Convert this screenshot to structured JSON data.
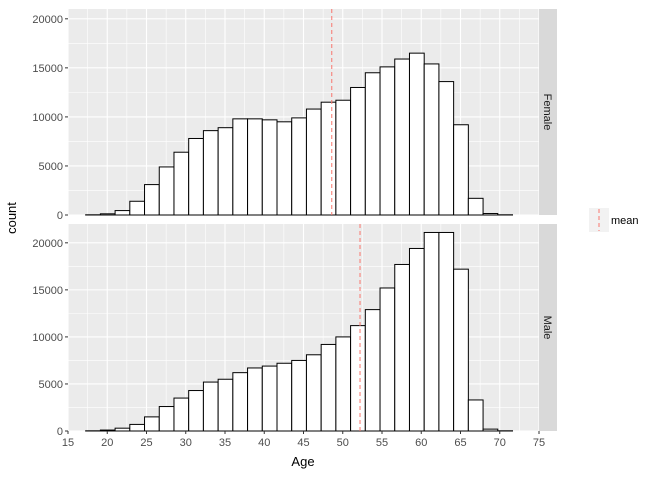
{
  "chart_data": {
    "type": "histogram",
    "xlabel": "Age",
    "ylabel": "count",
    "xlim": [
      15,
      75
    ],
    "x_ticks": [
      15,
      20,
      25,
      30,
      35,
      40,
      45,
      50,
      55,
      60,
      65,
      70,
      75
    ],
    "bin_width": 1.875,
    "bin_start": 17.25,
    "grid": true,
    "legend": {
      "position": "right",
      "entries": [
        {
          "label": "mean",
          "color": "#F8766D",
          "linetype": "dashed"
        }
      ]
    },
    "panels": [
      {
        "facet": "Female",
        "ylim": [
          0,
          21000
        ],
        "y_ticks": [
          0,
          5000,
          10000,
          15000,
          20000
        ],
        "mean": 48.6,
        "counts": [
          20,
          120,
          450,
          1400,
          3100,
          4900,
          6400,
          7800,
          8600,
          8900,
          9800,
          9800,
          9700,
          9500,
          9900,
          10800,
          11500,
          11700,
          13000,
          14500,
          15100,
          15900,
          16500,
          15400,
          13600,
          9200,
          1700,
          150,
          20
        ]
      },
      {
        "facet": "Male",
        "ylim": [
          0,
          22000
        ],
        "y_ticks": [
          0,
          5000,
          10000,
          15000,
          20000
        ],
        "mean": 52.2,
        "counts": [
          20,
          100,
          300,
          700,
          1500,
          2600,
          3500,
          4300,
          5200,
          5500,
          6200,
          6700,
          6900,
          7200,
          7500,
          8100,
          9200,
          10000,
          11200,
          12900,
          15200,
          17700,
          19400,
          21100,
          21100,
          17200,
          3300,
          200,
          20
        ]
      }
    ]
  }
}
